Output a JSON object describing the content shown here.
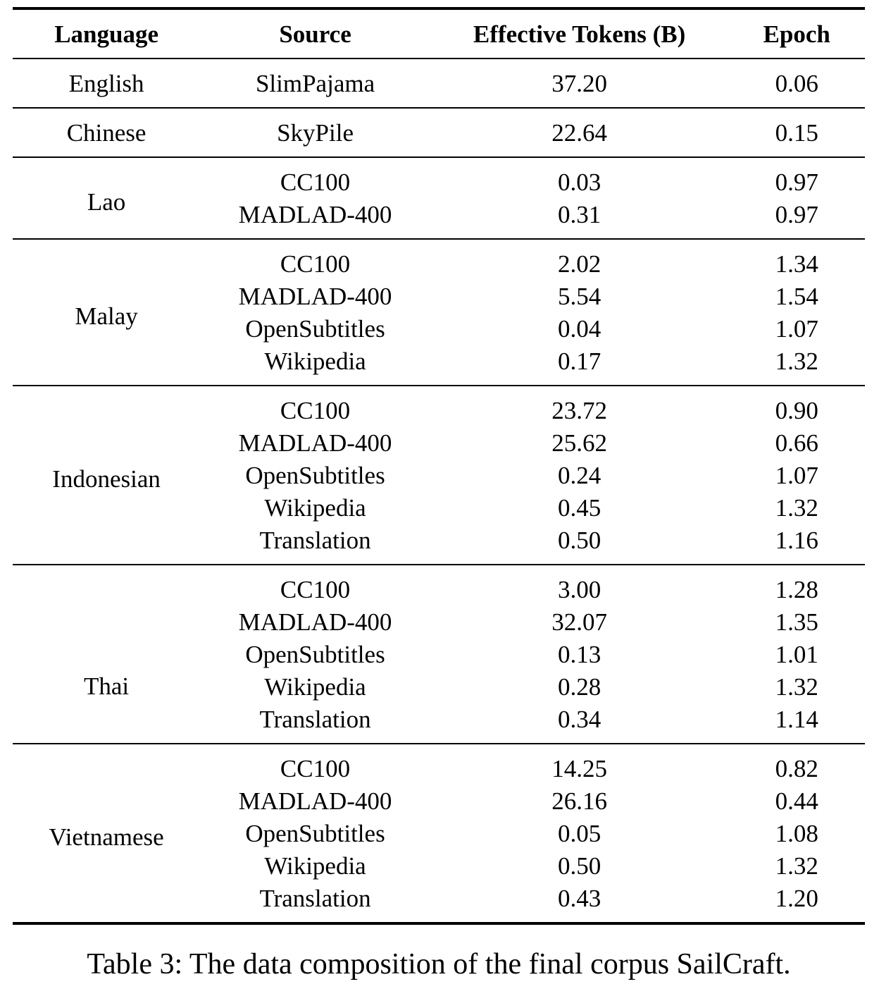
{
  "colors": {
    "text": "#000000",
    "background": "#ffffff",
    "rule": "#000000"
  },
  "table": {
    "columns": [
      "Language",
      "Source",
      "Effective Tokens (B)",
      "Epoch"
    ],
    "groups": [
      {
        "language": "English",
        "rows": [
          {
            "source": "SlimPajama",
            "tokens": "37.20",
            "epoch": "0.06"
          }
        ]
      },
      {
        "language": "Chinese",
        "rows": [
          {
            "source": "SkyPile",
            "tokens": "22.64",
            "epoch": "0.15"
          }
        ]
      },
      {
        "language": "Lao",
        "rows": [
          {
            "source": "CC100",
            "tokens": "0.03",
            "epoch": "0.97"
          },
          {
            "source": "MADLAD-400",
            "tokens": "0.31",
            "epoch": "0.97"
          }
        ]
      },
      {
        "language": "Malay",
        "rows": [
          {
            "source": "CC100",
            "tokens": "2.02",
            "epoch": "1.34"
          },
          {
            "source": "MADLAD-400",
            "tokens": "5.54",
            "epoch": "1.54"
          },
          {
            "source": "OpenSubtitles",
            "tokens": "0.04",
            "epoch": "1.07"
          },
          {
            "source": "Wikipedia",
            "tokens": "0.17",
            "epoch": "1.32"
          }
        ]
      },
      {
        "language": "Indonesian",
        "rows": [
          {
            "source": "CC100",
            "tokens": "23.72",
            "epoch": "0.90"
          },
          {
            "source": "MADLAD-400",
            "tokens": "25.62",
            "epoch": "0.66"
          },
          {
            "source": "OpenSubtitles",
            "tokens": "0.24",
            "epoch": "1.07"
          },
          {
            "source": "Wikipedia",
            "tokens": "0.45",
            "epoch": "1.32"
          },
          {
            "source": "Translation",
            "tokens": "0.50",
            "epoch": "1.16"
          }
        ]
      },
      {
        "language": "Thai",
        "rows": [
          {
            "source": "CC100",
            "tokens": "3.00",
            "epoch": "1.28"
          },
          {
            "source": "MADLAD-400",
            "tokens": "32.07",
            "epoch": "1.35"
          },
          {
            "source": "OpenSubtitles",
            "tokens": "0.13",
            "epoch": "1.01"
          },
          {
            "source": "Wikipedia",
            "tokens": "0.28",
            "epoch": "1.32"
          },
          {
            "source": "Translation",
            "tokens": "0.34",
            "epoch": "1.14"
          }
        ]
      },
      {
        "language": "Vietnamese",
        "rows": [
          {
            "source": "CC100",
            "tokens": "14.25",
            "epoch": "0.82"
          },
          {
            "source": "MADLAD-400",
            "tokens": "26.16",
            "epoch": "0.44"
          },
          {
            "source": "OpenSubtitles",
            "tokens": "0.05",
            "epoch": "1.08"
          },
          {
            "source": "Wikipedia",
            "tokens": "0.50",
            "epoch": "1.32"
          },
          {
            "source": "Translation",
            "tokens": "0.43",
            "epoch": "1.20"
          }
        ]
      }
    ]
  },
  "caption": "Table 3: The data composition of the final corpus SailCraft."
}
